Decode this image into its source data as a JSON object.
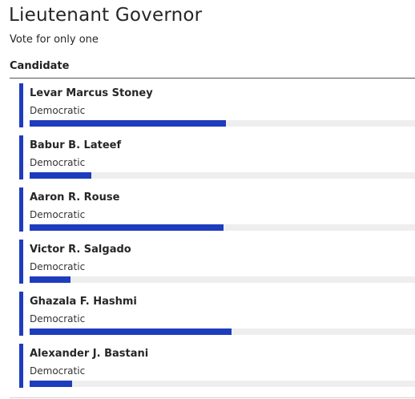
{
  "race": {
    "title": "Lieutenant Governor",
    "instruction": "Vote for only one"
  },
  "table": {
    "column_header": "Candidate"
  },
  "colors": {
    "accent": "#1e3cbe",
    "bar_track": "#eeeeee"
  },
  "candidates": [
    {
      "name": "Levar Marcus Stoney",
      "party": "Democratic",
      "bar_fraction": 0.509
    },
    {
      "name": "Babur B. Lateef",
      "party": "Democratic",
      "bar_fraction": 0.16
    },
    {
      "name": "Aaron R. Rouse",
      "party": "Democratic",
      "bar_fraction": 0.503
    },
    {
      "name": "Victor R. Salgado",
      "party": "Democratic",
      "bar_fraction": 0.106
    },
    {
      "name": "Ghazala F. Hashmi",
      "party": "Democratic",
      "bar_fraction": 0.524
    },
    {
      "name": "Alexander J. Bastani",
      "party": "Democratic",
      "bar_fraction": 0.11
    }
  ]
}
